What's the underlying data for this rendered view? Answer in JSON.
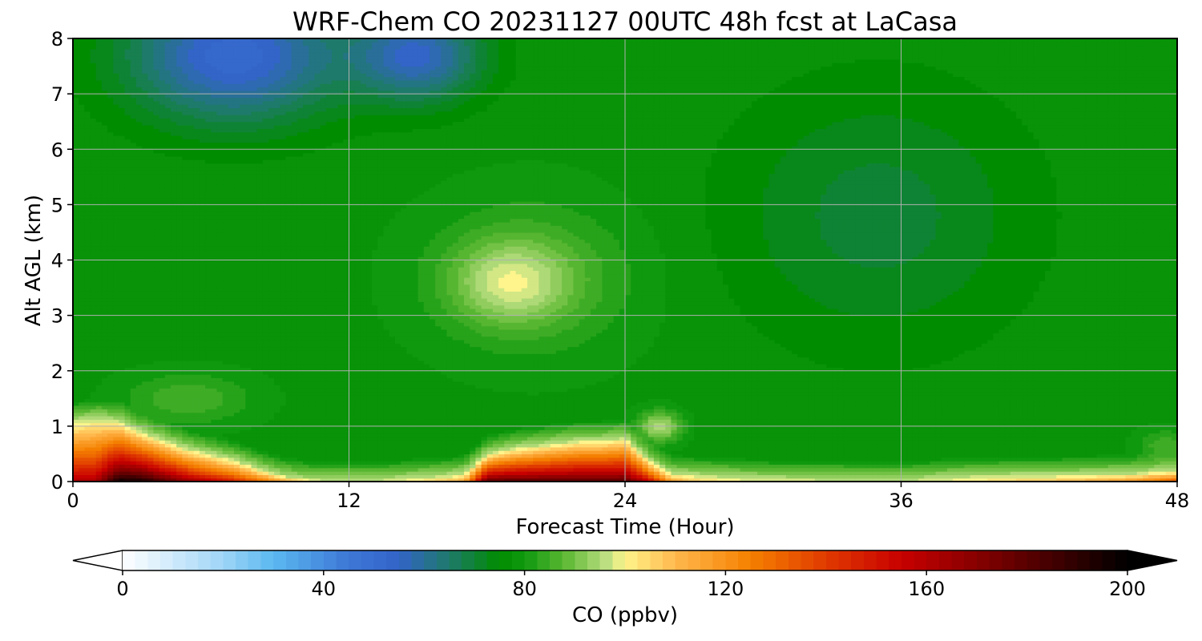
{
  "chart_data": {
    "type": "heatmap",
    "title": "WRF-Chem CO  20231127 00UTC 48h fcst at LaCasa",
    "xlabel": "Forecast Time (Hour)",
    "ylabel": "Alt AGL (km)",
    "xlim": [
      0,
      48
    ],
    "ylim": [
      0,
      8
    ],
    "x_ticks": [
      0,
      12,
      24,
      36,
      48
    ],
    "y_ticks": [
      0,
      1,
      2,
      3,
      4,
      5,
      6,
      7,
      8
    ],
    "grid": true,
    "colorbar": {
      "label": "CO  (ppbv)",
      "range": [
        0,
        200
      ],
      "ticks": [
        0,
        40,
        80,
        120,
        160,
        200
      ],
      "extend": "both",
      "orientation": "horizontal",
      "palette": [
        [
          0,
          "#ffffff"
        ],
        [
          20,
          "#9fd5f7"
        ],
        [
          30,
          "#5ab8f0"
        ],
        [
          45,
          "#3d77d6"
        ],
        [
          55,
          "#3364c8"
        ],
        [
          65,
          "#1e7a6a"
        ],
        [
          75,
          "#008c00"
        ],
        [
          80,
          "#0f990f"
        ],
        [
          88,
          "#5cb833"
        ],
        [
          96,
          "#b8de80"
        ],
        [
          100,
          "#fff58c"
        ],
        [
          110,
          "#ffb84d"
        ],
        [
          125,
          "#f58000"
        ],
        [
          140,
          "#e03a00"
        ],
        [
          155,
          "#c80000"
        ],
        [
          175,
          "#700000"
        ],
        [
          200,
          "#000000"
        ]
      ],
      "under_color": "#ffffff",
      "over_color": "#000000"
    },
    "hours": [
      0,
      1,
      2,
      3,
      4,
      5,
      6,
      7,
      8,
      9,
      10,
      11,
      12,
      13,
      14,
      15,
      16,
      17,
      18,
      19,
      20,
      21,
      22,
      23,
      24,
      25,
      26,
      27,
      28,
      29,
      30,
      31,
      32,
      33,
      34,
      35,
      36,
      37,
      38,
      39,
      40,
      41,
      42,
      43,
      44,
      45,
      46,
      47,
      48
    ],
    "surface_co_ppbv": [
      165,
      165,
      200,
      200,
      185,
      170,
      160,
      150,
      135,
      120,
      110,
      102,
      98,
      96,
      100,
      105,
      110,
      115,
      185,
      185,
      185,
      185,
      185,
      185,
      185,
      160,
      120,
      110,
      104,
      101,
      99,
      98,
      97,
      96,
      96,
      96,
      96,
      97,
      100,
      103,
      105,
      108,
      110,
      112,
      115,
      118,
      122,
      130,
      140
    ],
    "boundary_layer_depth_km": [
      1.1,
      1.15,
      1.1,
      0.9,
      0.75,
      0.6,
      0.5,
      0.4,
      0.25,
      0.12,
      0.05,
      0.03,
      0.03,
      0.03,
      0.05,
      0.08,
      0.1,
      0.15,
      0.5,
      0.6,
      0.65,
      0.7,
      0.75,
      0.75,
      0.8,
      0.4,
      0.15,
      0.12,
      0.1,
      0.08,
      0.06,
      0.05,
      0.05,
      0.05,
      0.04,
      0.04,
      0.04,
      0.05,
      0.08,
      0.1,
      0.1,
      0.12,
      0.12,
      0.12,
      0.13,
      0.14,
      0.15,
      0.18,
      0.2
    ],
    "features": [
      {
        "type": "blob",
        "center": [
          19,
          3.6
        ],
        "size": [
          5.5,
          1.6
        ],
        "co_ppbv": 92
      },
      {
        "type": "blob",
        "center": [
          20,
          3.7
        ],
        "size": [
          10,
          3
        ],
        "co_ppbv": 86
      },
      {
        "type": "blob",
        "center": [
          5,
          1.5
        ],
        "size": [
          6,
          1.0
        ],
        "co_ppbv": 86
      },
      {
        "type": "blob",
        "center": [
          25.5,
          1.0
        ],
        "size": [
          2.0,
          0.6
        ],
        "co_ppbv": 96
      },
      {
        "type": "blob",
        "center": [
          47.5,
          0.65
        ],
        "size": [
          2.5,
          0.6
        ],
        "co_ppbv": 86
      },
      {
        "type": "blob",
        "center": [
          7,
          7.7
        ],
        "size": [
          10,
          2.6
        ],
        "co_ppbv": 52
      },
      {
        "type": "blob",
        "center": [
          15,
          7.7
        ],
        "size": [
          6,
          1.8
        ],
        "co_ppbv": 56
      },
      {
        "type": "blob",
        "center": [
          35,
          4.8
        ],
        "size": [
          14,
          5
        ],
        "co_ppbv": 70
      }
    ],
    "background_co_ppbv": 78
  }
}
